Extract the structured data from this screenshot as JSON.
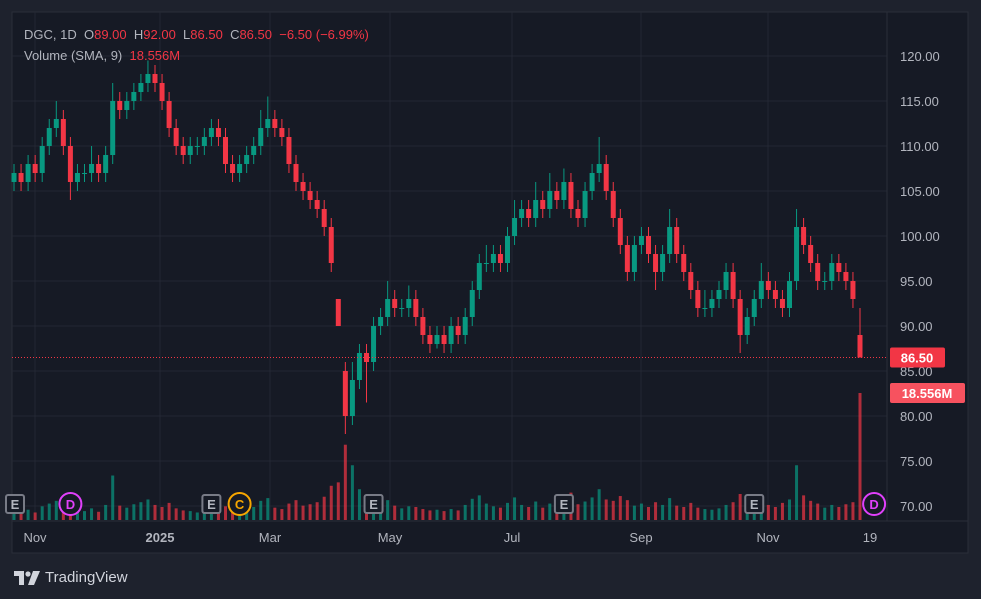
{
  "legend": {
    "symbol": "DGC, 1D",
    "open_label": "O",
    "open": "89.00",
    "high_label": "H",
    "high": "92.00",
    "low_label": "L",
    "low": "86.50",
    "close_label": "C",
    "close": "86.50",
    "change": "−6.50 (−6.99%)",
    "volume_label": "Volume (SMA, 9)",
    "volume_value": "18.556M"
  },
  "brand": "TradingView",
  "colors": {
    "up": "#089981",
    "down": "#f23645",
    "background": "#161a25",
    "frame": "#1e222d",
    "dividend": "#e040fb",
    "split": "#f7a600",
    "earnings": "#787b86"
  },
  "chart_data": {
    "type": "candlestick",
    "symbol": "DGC",
    "interval": "1D",
    "ylim": [
      68,
      122
    ],
    "y_ticks": [
      "120.00",
      "115.00",
      "110.00",
      "105.00",
      "100.00",
      "95.00",
      "90.00",
      "85.00",
      "80.00",
      "75.00",
      "70.00"
    ],
    "x_ticks": [
      "Nov",
      "2025",
      "Mar",
      "May",
      "Jul",
      "Sep",
      "Nov",
      "19"
    ],
    "last_price_label": "86.50",
    "volume_label": "18.556M",
    "grid": true,
    "candles": [
      [
        106,
        108,
        105,
        107
      ],
      [
        107,
        108,
        105,
        106
      ],
      [
        106,
        109,
        105,
        108
      ],
      [
        108,
        109,
        106,
        107
      ],
      [
        107,
        111,
        106,
        110
      ],
      [
        110,
        113,
        109,
        112
      ],
      [
        112,
        115,
        111,
        113
      ],
      [
        113,
        114,
        109,
        110
      ],
      [
        110,
        111,
        104,
        106
      ],
      [
        106,
        108,
        105,
        107
      ],
      [
        107,
        108,
        106,
        107
      ],
      [
        107,
        110,
        106,
        108
      ],
      [
        108,
        109,
        106,
        107
      ],
      [
        107,
        110,
        106,
        109
      ],
      [
        109,
        117,
        108,
        115
      ],
      [
        115,
        116,
        113,
        114
      ],
      [
        114,
        116,
        113,
        115
      ],
      [
        115,
        117,
        114,
        116
      ],
      [
        116,
        118,
        115,
        117
      ],
      [
        117,
        119.5,
        116,
        118
      ],
      [
        118,
        119,
        116,
        117
      ],
      [
        117,
        118,
        114,
        115
      ],
      [
        115,
        116,
        111,
        112
      ],
      [
        112,
        113,
        109,
        110
      ],
      [
        110,
        111,
        108,
        109
      ],
      [
        109,
        111,
        108,
        110
      ],
      [
        110,
        111,
        109,
        110
      ],
      [
        110,
        112,
        109,
        111
      ],
      [
        111,
        113,
        110,
        112
      ],
      [
        112,
        113,
        110,
        111
      ],
      [
        111,
        112,
        107,
        108
      ],
      [
        108,
        109,
        106,
        107
      ],
      [
        107,
        109,
        106,
        108
      ],
      [
        108,
        110,
        107,
        109
      ],
      [
        109,
        111,
        108,
        110
      ],
      [
        110,
        114,
        109,
        112
      ],
      [
        112,
        115.5,
        111,
        113
      ],
      [
        113,
        114,
        111,
        112
      ],
      [
        112,
        113,
        110,
        111
      ],
      [
        111,
        112,
        107,
        108
      ],
      [
        108,
        109,
        105,
        106
      ],
      [
        106,
        107,
        104,
        105
      ],
      [
        105,
        106,
        103,
        104
      ],
      [
        104,
        105,
        102,
        103
      ],
      [
        103,
        104,
        100,
        101
      ],
      [
        101,
        102,
        96,
        97
      ],
      [
        93,
        93,
        90,
        90
      ],
      [
        85,
        86,
        78,
        80
      ],
      [
        80,
        86,
        79,
        84
      ],
      [
        84,
        88,
        83,
        87
      ],
      [
        87,
        88,
        81.5,
        86
      ],
      [
        86,
        91,
        85,
        90
      ],
      [
        90,
        92,
        89,
        91
      ],
      [
        91,
        95,
        90,
        93
      ],
      [
        93,
        94,
        91,
        92
      ],
      [
        92,
        93,
        91,
        92
      ],
      [
        92,
        94.5,
        91,
        93
      ],
      [
        93,
        94,
        90,
        91
      ],
      [
        91,
        92,
        88,
        89
      ],
      [
        89,
        90,
        87,
        88
      ],
      [
        88,
        90,
        87.5,
        89
      ],
      [
        89,
        90,
        87,
        88
      ],
      [
        88,
        91,
        87,
        90
      ],
      [
        90,
        91,
        88,
        89
      ],
      [
        89,
        92,
        88,
        91
      ],
      [
        91,
        95,
        90,
        94
      ],
      [
        94,
        98,
        93,
        97
      ],
      [
        97,
        99,
        96,
        97
      ],
      [
        97,
        99,
        96,
        98
      ],
      [
        98,
        99,
        96,
        97
      ],
      [
        97,
        101,
        96,
        100
      ],
      [
        100,
        104,
        99,
        102
      ],
      [
        102,
        104,
        101,
        103
      ],
      [
        103,
        104,
        101,
        102
      ],
      [
        102,
        106,
        101,
        104
      ],
      [
        104,
        105,
        102,
        103
      ],
      [
        103,
        107,
        102,
        105
      ],
      [
        105,
        106,
        103,
        104
      ],
      [
        104,
        107.5,
        103,
        106
      ],
      [
        106,
        107,
        102,
        103
      ],
      [
        103,
        104,
        101,
        102
      ],
      [
        102,
        106,
        101,
        105
      ],
      [
        105,
        108,
        104,
        107
      ],
      [
        107,
        111,
        106,
        108
      ],
      [
        108,
        109,
        104,
        105
      ],
      [
        105,
        106,
        101,
        102
      ],
      [
        102,
        103,
        98,
        99
      ],
      [
        99,
        100,
        95,
        96
      ],
      [
        96,
        100,
        95,
        99
      ],
      [
        99,
        101,
        98,
        100
      ],
      [
        100,
        101,
        97,
        98
      ],
      [
        98,
        99,
        94,
        96
      ],
      [
        96,
        99,
        95,
        98
      ],
      [
        98,
        103,
        97,
        101
      ],
      [
        101,
        102,
        97,
        98
      ],
      [
        98,
        99,
        95,
        96
      ],
      [
        96,
        97,
        93,
        94
      ],
      [
        94,
        95,
        91,
        92
      ],
      [
        92,
        94,
        91,
        92
      ],
      [
        92,
        94,
        91,
        93
      ],
      [
        93,
        95,
        92,
        94
      ],
      [
        94,
        97,
        93,
        96
      ],
      [
        96,
        97,
        92,
        93
      ],
      [
        93,
        94,
        87,
        89
      ],
      [
        89,
        92,
        88,
        91
      ],
      [
        91,
        94,
        90,
        93
      ],
      [
        93,
        97,
        92,
        95
      ],
      [
        95,
        96,
        93,
        94
      ],
      [
        94,
        95,
        92,
        93
      ],
      [
        93,
        94,
        91,
        92
      ],
      [
        92,
        96,
        91,
        95
      ],
      [
        95,
        103,
        94,
        101
      ],
      [
        101,
        102,
        98,
        99
      ],
      [
        99,
        100,
        96,
        97
      ],
      [
        97,
        98,
        94,
        95
      ],
      [
        95,
        96,
        94,
        95
      ],
      [
        95,
        98,
        94,
        97
      ],
      [
        97,
        98,
        95,
        96
      ],
      [
        96,
        97,
        94,
        95
      ],
      [
        95,
        96,
        92,
        93
      ],
      [
        89,
        92,
        86.5,
        86.5
      ]
    ],
    "volume_millions": [
      1.2,
      1.0,
      1.5,
      1.1,
      2.0,
      2.4,
      2.8,
      1.6,
      4.0,
      1.8,
      1.3,
      1.7,
      1.2,
      2.2,
      6.5,
      2.1,
      1.8,
      2.3,
      2.6,
      3.0,
      2.2,
      1.9,
      2.5,
      1.7,
      1.4,
      1.3,
      1.1,
      1.5,
      1.8,
      1.2,
      2.0,
      1.5,
      1.3,
      1.6,
      1.9,
      2.8,
      3.2,
      1.8,
      1.6,
      2.4,
      2.9,
      2.1,
      2.3,
      2.6,
      3.4,
      5.0,
      5.5,
      11.0,
      8.0,
      4.5,
      3.5,
      3.2,
      2.6,
      2.9,
      2.1,
      1.7,
      2.0,
      1.9,
      1.6,
      1.4,
      1.5,
      1.3,
      1.6,
      1.4,
      2.2,
      3.1,
      3.6,
      2.4,
      2.0,
      1.8,
      2.5,
      3.3,
      2.2,
      1.9,
      2.7,
      1.8,
      2.4,
      1.7,
      2.6,
      4.0,
      2.3,
      2.7,
      3.3,
      4.5,
      3.0,
      2.8,
      3.5,
      2.9,
      2.1,
      2.4,
      1.9,
      2.6,
      2.2,
      3.2,
      2.1,
      1.9,
      2.5,
      1.8,
      1.6,
      1.5,
      1.7,
      2.2,
      2.6,
      3.8,
      2.4,
      2.0,
      2.9,
      2.2,
      1.9,
      2.5,
      3.0,
      8.0,
      3.6,
      2.8,
      2.4,
      1.8,
      2.2,
      1.9,
      2.3,
      2.6,
      18.556
    ],
    "events": [
      {
        "type": "earnings",
        "label": "E",
        "candle": 0
      },
      {
        "type": "dividend",
        "label": "D",
        "candle": 8
      },
      {
        "type": "earnings",
        "label": "E",
        "candle": 28
      },
      {
        "type": "split",
        "label": "C",
        "candle": 32
      },
      {
        "type": "earnings",
        "label": "E",
        "candle": 51
      },
      {
        "type": "earnings",
        "label": "E",
        "candle": 78
      },
      {
        "type": "earnings",
        "label": "E",
        "candle": 105
      },
      {
        "type": "dividend",
        "label": "D",
        "candle": 122
      }
    ]
  }
}
